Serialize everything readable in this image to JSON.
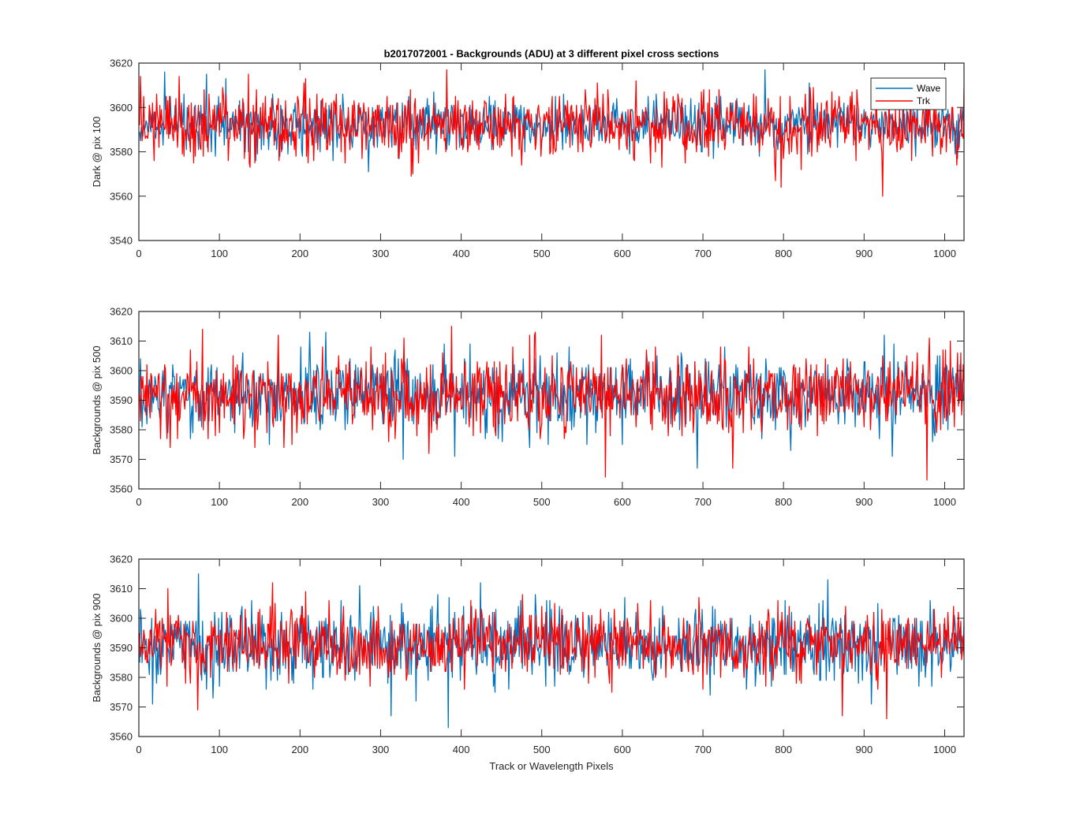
{
  "figure": {
    "title": "b2017072001 - Backgrounds (ADU) at 3 different pixel cross sections",
    "xlabel": "Track or Wavelength Pixels"
  },
  "legend": {
    "entries": [
      {
        "name": "Wave",
        "color": "#0072BD"
      },
      {
        "name": "Trk",
        "color": "#FF0000"
      }
    ],
    "placement": "top-right"
  },
  "chart_data": [
    {
      "type": "line",
      "title": "b2017072001 - Backgrounds (ADU) at 3 different pixel cross sections",
      "xlabel": "",
      "ylabel": "Dark @ pix 100",
      "xlim": [
        0,
        1024
      ],
      "ylim": [
        3540,
        3620
      ],
      "xticks": [
        0,
        100,
        200,
        300,
        400,
        500,
        600,
        700,
        800,
        900,
        1000
      ],
      "yticks": [
        3540,
        3560,
        3580,
        3600,
        3620
      ],
      "grid": false,
      "legend": true,
      "series": [
        {
          "name": "Wave",
          "color": "#0072BD",
          "x_start": 1,
          "x_step": 1,
          "summary": {
            "center": 3592,
            "min": 3571,
            "max": 3617,
            "count": 1024
          },
          "notable_points": [
            {
              "x": 32,
              "y": 3616
            },
            {
              "x": 84,
              "y": 3615
            },
            {
              "x": 108,
              "y": 3613
            },
            {
              "x": 285,
              "y": 3571
            },
            {
              "x": 777,
              "y": 3617
            },
            {
              "x": 1016,
              "y": 3577
            }
          ]
        },
        {
          "name": "Trk",
          "color": "#FF0000",
          "x_start": 1,
          "x_step": 1,
          "summary": {
            "center": 3592,
            "min": 3560,
            "max": 3617,
            "count": 1024
          },
          "notable_points": [
            {
              "x": 2,
              "y": 3614
            },
            {
              "x": 68,
              "y": 3575
            },
            {
              "x": 382,
              "y": 3617
            },
            {
              "x": 617,
              "y": 3612
            },
            {
              "x": 698,
              "y": 3607
            },
            {
              "x": 790,
              "y": 3567
            },
            {
              "x": 797,
              "y": 3564
            },
            {
              "x": 923,
              "y": 3560
            }
          ]
        }
      ]
    },
    {
      "type": "line",
      "title": "",
      "xlabel": "",
      "ylabel": "Backgrounds @ pix 500",
      "xlim": [
        0,
        1024
      ],
      "ylim": [
        3560,
        3620
      ],
      "xticks": [
        0,
        100,
        200,
        300,
        400,
        500,
        600,
        700,
        800,
        900,
        1000
      ],
      "yticks": [
        3560,
        3570,
        3580,
        3590,
        3600,
        3610,
        3620
      ],
      "grid": false,
      "legend": false,
      "series": [
        {
          "name": "Wave",
          "color": "#0072BD",
          "x_start": 1,
          "x_step": 1,
          "summary": {
            "center": 3592,
            "min": 3567,
            "max": 3613,
            "count": 1024
          },
          "notable_points": [
            {
              "x": 212,
              "y": 3613
            },
            {
              "x": 232,
              "y": 3613
            },
            {
              "x": 328,
              "y": 3570
            },
            {
              "x": 392,
              "y": 3571
            },
            {
              "x": 693,
              "y": 3567
            },
            {
              "x": 925,
              "y": 3612
            }
          ]
        },
        {
          "name": "Trk",
          "color": "#FF0000",
          "x_start": 1,
          "x_step": 1,
          "summary": {
            "center": 3592,
            "min": 3563,
            "max": 3615,
            "count": 1024
          },
          "notable_points": [
            {
              "x": 79,
              "y": 3614
            },
            {
              "x": 388,
              "y": 3615
            },
            {
              "x": 579,
              "y": 3564
            },
            {
              "x": 737,
              "y": 3567
            },
            {
              "x": 978,
              "y": 3563
            },
            {
              "x": 1007,
              "y": 3610
            }
          ]
        }
      ]
    },
    {
      "type": "line",
      "title": "",
      "xlabel": "Track or Wavelength Pixels",
      "ylabel": "Backgrounds @ pix 900",
      "xlim": [
        0,
        1024
      ],
      "ylim": [
        3560,
        3620
      ],
      "xticks": [
        0,
        100,
        200,
        300,
        400,
        500,
        600,
        700,
        800,
        900,
        1000
      ],
      "yticks": [
        3560,
        3570,
        3580,
        3590,
        3600,
        3610,
        3620
      ],
      "grid": false,
      "legend": false,
      "series": [
        {
          "name": "Wave",
          "color": "#0072BD",
          "x_start": 1,
          "x_step": 1,
          "summary": {
            "center": 3591,
            "min": 3563,
            "max": 3615,
            "count": 1024
          },
          "notable_points": [
            {
              "x": 74,
              "y": 3615
            },
            {
              "x": 313,
              "y": 3567
            },
            {
              "x": 384,
              "y": 3563
            },
            {
              "x": 424,
              "y": 3612
            },
            {
              "x": 855,
              "y": 3613
            }
          ]
        },
        {
          "name": "Trk",
          "color": "#FF0000",
          "x_start": 1,
          "x_step": 1,
          "summary": {
            "center": 3591,
            "min": 3566,
            "max": 3612,
            "count": 1024
          },
          "notable_points": [
            {
              "x": 36,
              "y": 3610
            },
            {
              "x": 73,
              "y": 3569
            },
            {
              "x": 166,
              "y": 3612
            },
            {
              "x": 873,
              "y": 3567
            },
            {
              "x": 928,
              "y": 3566
            }
          ]
        }
      ]
    }
  ]
}
